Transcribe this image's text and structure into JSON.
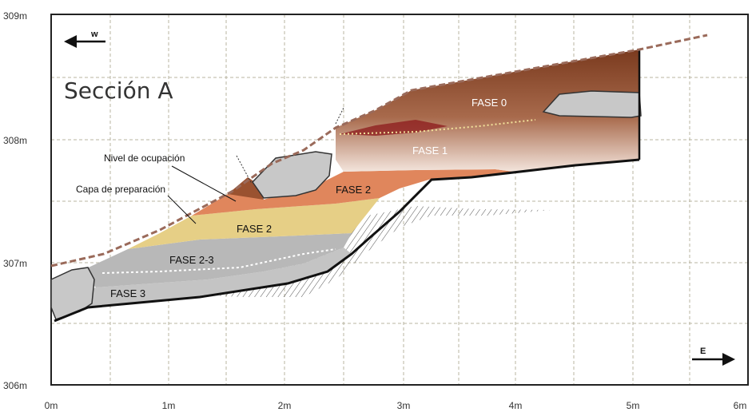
{
  "title": "Sección A",
  "axes": {
    "x_ticks": [
      "0m",
      "1m",
      "2m",
      "3m",
      "4m",
      "5m",
      "6m"
    ],
    "y_ticks": [
      "309m",
      "308m",
      "307m",
      "306m"
    ]
  },
  "directions": {
    "west": "w",
    "east": "E"
  },
  "phases": {
    "fase0": "FASE 0",
    "fase1": "FASE 1",
    "fase2_upper": "FASE 2",
    "fase2_lower": "FASE 2",
    "fase23": "FASE 2-3",
    "fase3": "FASE 3"
  },
  "annotations": {
    "nivel_ocupacion": "Nivel de ocupación",
    "capa_preparacion": "Capa de preparación"
  },
  "colors": {
    "grid": "#b8b4a0",
    "fase0": "#8c4a2a",
    "fase1": "#a86a4c",
    "fase2_upper": "#e0865c",
    "fase2_lower": "#e6cf86",
    "fase23": "#b8b8b8",
    "fase3": "#c4c4c4",
    "rock": "#c8c8c8",
    "surface_dash": "#9a6a5a",
    "dotted_line": "#f3e29a"
  }
}
